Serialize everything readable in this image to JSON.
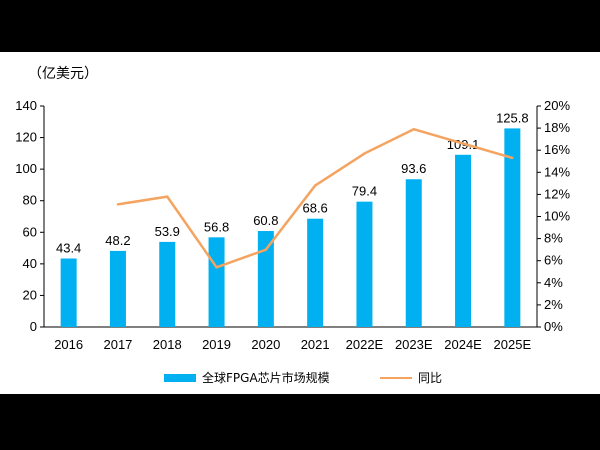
{
  "chart_data": {
    "type": "bar",
    "unit_label": "（亿美元）",
    "categories": [
      "2016",
      "2017",
      "2018",
      "2019",
      "2020",
      "2021",
      "2022E",
      "2023E",
      "2024E",
      "2025E"
    ],
    "series": [
      {
        "name": "全球FPGA芯片市场规模",
        "kind": "bar",
        "axis": "left",
        "values": [
          43.4,
          48.2,
          53.9,
          56.8,
          60.8,
          68.6,
          79.4,
          93.6,
          109.1,
          125.8
        ],
        "labels": [
          "43.4",
          "48.2",
          "53.9",
          "56.8",
          "60.8",
          "68.6",
          "79.4",
          "93.6",
          "109.1",
          "125.8"
        ]
      },
      {
        "name": "同比",
        "kind": "line",
        "axis": "right",
        "values": [
          null,
          11.1,
          11.8,
          5.4,
          7.0,
          12.8,
          15.7,
          17.9,
          16.6,
          15.3
        ]
      }
    ],
    "y_left": {
      "min": 0,
      "max": 140,
      "ticks": [
        "0",
        "20",
        "40",
        "60",
        "80",
        "100",
        "120",
        "140"
      ]
    },
    "y_right": {
      "min": 0,
      "max": 20,
      "ticks": [
        "0%",
        "2%",
        "4%",
        "6%",
        "8%",
        "10%",
        "12%",
        "14%",
        "16%",
        "18%",
        "20%"
      ]
    },
    "colors": {
      "bar": "#00B0F0",
      "line": "#F4A460"
    },
    "legend_position": "bottom"
  }
}
